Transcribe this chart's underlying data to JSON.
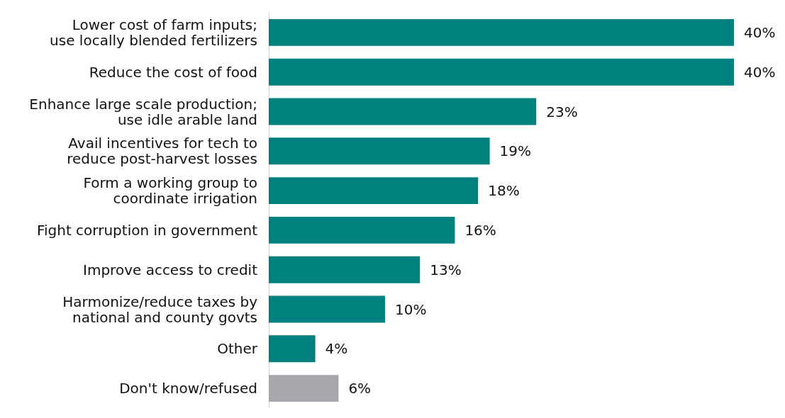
{
  "chart_data": {
    "type": "bar",
    "orientation": "horizontal",
    "value_labels": [
      "40%",
      "40%",
      "23%",
      "19%",
      "18%",
      "16%",
      "13%",
      "10%",
      "4%",
      "6%"
    ],
    "categories": [
      "Lower cost of farm inputs;\nuse locally blended fertilizers",
      "Reduce the cost of food",
      "Enhance large scale production;\nuse idle arable land",
      "Avail incentives for tech to\nreduce post-harvest losses",
      "Form a working group to\ncoordinate irrigation",
      "Fight corruption in government",
      "Improve access to credit",
      "Harmonize/reduce taxes by\nnational and county govts",
      "Other",
      "Don't know/refused"
    ],
    "values": [
      40,
      40,
      23,
      19,
      18,
      16,
      13,
      10,
      4,
      6
    ],
    "colors": [
      "#00807f",
      "#00807f",
      "#00807f",
      "#00807f",
      "#00807f",
      "#00807f",
      "#00807f",
      "#00807f",
      "#00807f",
      "#a7a8ab"
    ]
  }
}
